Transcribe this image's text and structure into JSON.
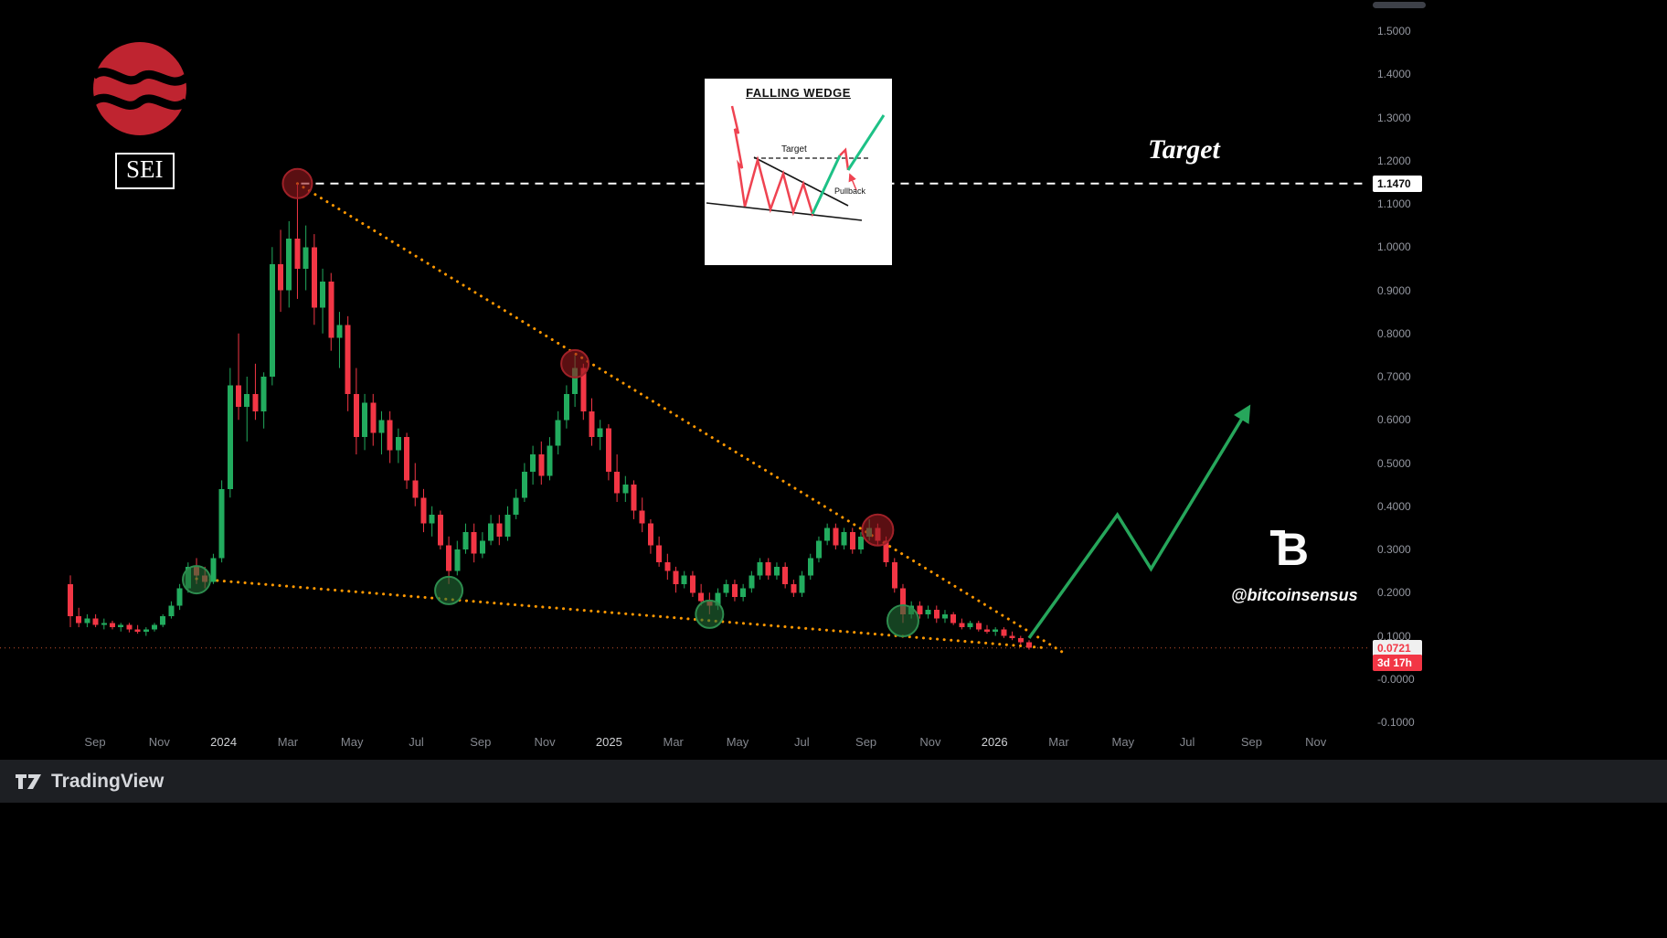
{
  "symbol_badge": {
    "text": "SEI"
  },
  "annotations": {
    "target_label": "Target",
    "watermark": {
      "letter": "B",
      "handle": "@bitcoinsensus"
    }
  },
  "inset": {
    "title": "FALLING WEDGE",
    "target_label": "Target",
    "pullback_label": "Pullback"
  },
  "footer": {
    "brand": "TradingView"
  },
  "chart_data": {
    "type": "candlestick",
    "symbol": "SEI",
    "pattern": "Falling Wedge",
    "y_axis": {
      "min": -0.1,
      "max": 1.5,
      "tick_interval": 0.1
    },
    "y_tick_labels": [
      "1.5000",
      "1.4000",
      "1.3000",
      "1.2000",
      "1.1000",
      "1.0000",
      "0.9000",
      "0.8000",
      "0.7000",
      "0.6000",
      "0.5000",
      "0.4000",
      "0.3000",
      "0.2000",
      "0.1000",
      "-0.0000",
      "-0.1000"
    ],
    "x_labels": [
      "Sep",
      "Nov",
      "2024",
      "Mar",
      "May",
      "Jul",
      "Sep",
      "Nov",
      "2025",
      "Mar",
      "May",
      "Jul",
      "Sep",
      "Nov",
      "2026",
      "Mar",
      "May",
      "Jul",
      "Sep",
      "Nov"
    ],
    "target_price": 1.147,
    "target_price_label": "1.1470",
    "current_price": 0.0721,
    "current_price_label": "0.0721",
    "countdown": "3d 17h",
    "candles": [
      [
        0.22,
        0.24,
        0.12,
        0.145
      ],
      [
        0.145,
        0.165,
        0.12,
        0.13
      ],
      [
        0.13,
        0.15,
        0.12,
        0.14
      ],
      [
        0.14,
        0.15,
        0.12,
        0.125
      ],
      [
        0.125,
        0.14,
        0.115,
        0.13
      ],
      [
        0.13,
        0.135,
        0.115,
        0.12
      ],
      [
        0.12,
        0.13,
        0.11,
        0.125
      ],
      [
        0.125,
        0.13,
        0.108,
        0.115
      ],
      [
        0.115,
        0.125,
        0.105,
        0.11
      ],
      [
        0.11,
        0.12,
        0.1,
        0.115
      ],
      [
        0.115,
        0.13,
        0.11,
        0.125
      ],
      [
        0.125,
        0.15,
        0.12,
        0.145
      ],
      [
        0.145,
        0.18,
        0.14,
        0.17
      ],
      [
        0.17,
        0.22,
        0.16,
        0.21
      ],
      [
        0.21,
        0.27,
        0.2,
        0.26
      ],
      [
        0.26,
        0.28,
        0.22,
        0.24
      ],
      [
        0.24,
        0.26,
        0.21,
        0.225
      ],
      [
        0.225,
        0.29,
        0.22,
        0.28
      ],
      [
        0.28,
        0.46,
        0.27,
        0.44
      ],
      [
        0.44,
        0.72,
        0.42,
        0.68
      ],
      [
        0.68,
        0.8,
        0.6,
        0.63
      ],
      [
        0.63,
        0.7,
        0.55,
        0.66
      ],
      [
        0.66,
        0.73,
        0.6,
        0.62
      ],
      [
        0.62,
        0.71,
        0.58,
        0.7
      ],
      [
        0.7,
        1.0,
        0.68,
        0.96
      ],
      [
        0.96,
        1.04,
        0.85,
        0.9
      ],
      [
        0.9,
        1.06,
        0.86,
        1.02
      ],
      [
        1.02,
        1.147,
        0.88,
        0.95
      ],
      [
        0.95,
        1.05,
        0.9,
        1.0
      ],
      [
        1.0,
        1.03,
        0.82,
        0.86
      ],
      [
        0.86,
        0.95,
        0.8,
        0.92
      ],
      [
        0.92,
        0.94,
        0.76,
        0.79
      ],
      [
        0.79,
        0.85,
        0.72,
        0.82
      ],
      [
        0.82,
        0.84,
        0.62,
        0.66
      ],
      [
        0.66,
        0.72,
        0.52,
        0.56
      ],
      [
        0.56,
        0.66,
        0.53,
        0.64
      ],
      [
        0.64,
        0.66,
        0.54,
        0.57
      ],
      [
        0.57,
        0.62,
        0.52,
        0.6
      ],
      [
        0.6,
        0.62,
        0.5,
        0.53
      ],
      [
        0.53,
        0.58,
        0.5,
        0.56
      ],
      [
        0.56,
        0.57,
        0.44,
        0.46
      ],
      [
        0.46,
        0.5,
        0.4,
        0.42
      ],
      [
        0.42,
        0.44,
        0.34,
        0.36
      ],
      [
        0.36,
        0.4,
        0.33,
        0.38
      ],
      [
        0.38,
        0.39,
        0.3,
        0.31
      ],
      [
        0.31,
        0.33,
        0.22,
        0.25
      ],
      [
        0.25,
        0.32,
        0.24,
        0.3
      ],
      [
        0.3,
        0.36,
        0.29,
        0.34
      ],
      [
        0.34,
        0.36,
        0.27,
        0.29
      ],
      [
        0.29,
        0.34,
        0.28,
        0.32
      ],
      [
        0.32,
        0.38,
        0.31,
        0.36
      ],
      [
        0.36,
        0.38,
        0.31,
        0.33
      ],
      [
        0.33,
        0.4,
        0.32,
        0.38
      ],
      [
        0.38,
        0.44,
        0.37,
        0.42
      ],
      [
        0.42,
        0.5,
        0.41,
        0.48
      ],
      [
        0.48,
        0.54,
        0.45,
        0.52
      ],
      [
        0.52,
        0.55,
        0.45,
        0.47
      ],
      [
        0.47,
        0.56,
        0.46,
        0.54
      ],
      [
        0.54,
        0.62,
        0.52,
        0.6
      ],
      [
        0.6,
        0.68,
        0.58,
        0.66
      ],
      [
        0.66,
        0.75,
        0.63,
        0.72
      ],
      [
        0.72,
        0.73,
        0.6,
        0.62
      ],
      [
        0.62,
        0.65,
        0.54,
        0.56
      ],
      [
        0.56,
        0.6,
        0.53,
        0.58
      ],
      [
        0.58,
        0.59,
        0.46,
        0.48
      ],
      [
        0.48,
        0.52,
        0.41,
        0.43
      ],
      [
        0.43,
        0.47,
        0.41,
        0.45
      ],
      [
        0.45,
        0.46,
        0.37,
        0.39
      ],
      [
        0.39,
        0.42,
        0.34,
        0.36
      ],
      [
        0.36,
        0.37,
        0.29,
        0.31
      ],
      [
        0.31,
        0.33,
        0.26,
        0.27
      ],
      [
        0.27,
        0.29,
        0.23,
        0.25
      ],
      [
        0.25,
        0.26,
        0.2,
        0.22
      ],
      [
        0.22,
        0.25,
        0.21,
        0.24
      ],
      [
        0.24,
        0.25,
        0.19,
        0.2
      ],
      [
        0.2,
        0.22,
        0.17,
        0.18
      ],
      [
        0.18,
        0.2,
        0.15,
        0.17
      ],
      [
        0.17,
        0.21,
        0.16,
        0.2
      ],
      [
        0.2,
        0.23,
        0.19,
        0.22
      ],
      [
        0.22,
        0.23,
        0.18,
        0.19
      ],
      [
        0.19,
        0.22,
        0.18,
        0.21
      ],
      [
        0.21,
        0.25,
        0.2,
        0.24
      ],
      [
        0.24,
        0.28,
        0.23,
        0.27
      ],
      [
        0.27,
        0.28,
        0.23,
        0.24
      ],
      [
        0.24,
        0.27,
        0.23,
        0.26
      ],
      [
        0.26,
        0.27,
        0.21,
        0.22
      ],
      [
        0.22,
        0.23,
        0.19,
        0.2
      ],
      [
        0.2,
        0.25,
        0.19,
        0.24
      ],
      [
        0.24,
        0.29,
        0.23,
        0.28
      ],
      [
        0.28,
        0.33,
        0.27,
        0.32
      ],
      [
        0.32,
        0.36,
        0.31,
        0.35
      ],
      [
        0.35,
        0.36,
        0.3,
        0.31
      ],
      [
        0.31,
        0.35,
        0.3,
        0.34
      ],
      [
        0.34,
        0.35,
        0.29,
        0.3
      ],
      [
        0.3,
        0.34,
        0.29,
        0.33
      ],
      [
        0.33,
        0.37,
        0.32,
        0.35
      ],
      [
        0.35,
        0.36,
        0.31,
        0.32
      ],
      [
        0.32,
        0.33,
        0.26,
        0.27
      ],
      [
        0.27,
        0.28,
        0.2,
        0.21
      ],
      [
        0.21,
        0.22,
        0.13,
        0.15
      ],
      [
        0.15,
        0.18,
        0.14,
        0.17
      ],
      [
        0.17,
        0.18,
        0.14,
        0.15
      ],
      [
        0.15,
        0.17,
        0.14,
        0.16
      ],
      [
        0.16,
        0.17,
        0.13,
        0.14
      ],
      [
        0.14,
        0.16,
        0.13,
        0.15
      ],
      [
        0.15,
        0.155,
        0.125,
        0.13
      ],
      [
        0.13,
        0.14,
        0.115,
        0.12
      ],
      [
        0.12,
        0.135,
        0.115,
        0.13
      ],
      [
        0.13,
        0.135,
        0.11,
        0.115
      ],
      [
        0.115,
        0.125,
        0.105,
        0.11
      ],
      [
        0.11,
        0.12,
        0.1,
        0.115
      ],
      [
        0.115,
        0.12,
        0.095,
        0.1
      ],
      [
        0.1,
        0.11,
        0.09,
        0.095
      ],
      [
        0.095,
        0.1,
        0.08,
        0.085
      ],
      [
        0.085,
        0.09,
        0.068,
        0.0721
      ]
    ],
    "trendlines": [
      {
        "name": "wedge-upper",
        "i1": 27,
        "p1": 1.147,
        "i2": 118,
        "p2": 0.062
      },
      {
        "name": "wedge-lower",
        "i1": 15,
        "p1": 0.232,
        "i2": 116,
        "p2": 0.072
      }
    ],
    "markers": [
      {
        "idx": 27,
        "price": 1.147,
        "color": "red",
        "r": 16
      },
      {
        "idx": 60,
        "price": 0.73,
        "color": "red",
        "r": 15
      },
      {
        "idx": 96,
        "price": 0.345,
        "color": "red",
        "r": 17
      },
      {
        "idx": 15,
        "price": 0.23,
        "color": "green",
        "r": 15
      },
      {
        "idx": 45,
        "price": 0.205,
        "color": "green",
        "r": 15
      },
      {
        "idx": 76,
        "price": 0.15,
        "color": "green",
        "r": 15
      },
      {
        "idx": 99,
        "price": 0.135,
        "color": "green",
        "r": 17
      }
    ],
    "projection": [
      {
        "idx": 114,
        "price": 0.095
      },
      {
        "idx": 124.5,
        "price": 0.38
      },
      {
        "idx": 128.5,
        "price": 0.255
      },
      {
        "idx": 140,
        "price": 0.625
      }
    ],
    "colors": {
      "up": "#22ab5e",
      "down": "#f23645",
      "trendline": "#ff9800",
      "target_line": "#ffffff",
      "projection": "#26a65b",
      "price_line": "#c1502f",
      "marker_red_fill": "rgba(150,25,30,0.6)",
      "marker_red_stroke": "#a02128",
      "marker_green_fill": "rgba(35,110,55,0.6)",
      "marker_green_stroke": "#2d8c4e"
    },
    "legend_position": "none",
    "grid": false
  }
}
